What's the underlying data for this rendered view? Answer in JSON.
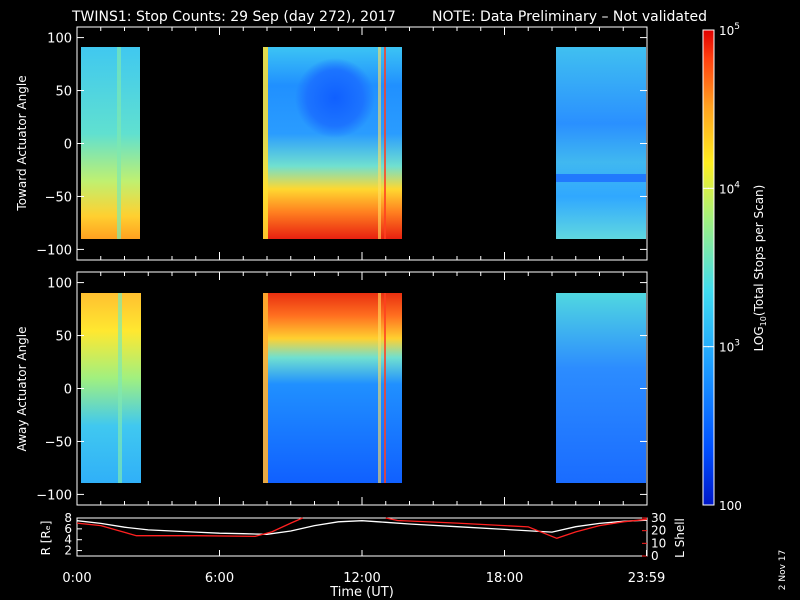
{
  "header": {
    "title": "TWINS1: Stop Counts: 29 Sep (day 272), 2017",
    "note": "NOTE: Data Preliminary – Not validated",
    "note_color": "#ff2020"
  },
  "footer": {
    "date_stamp": "2 Nov 17"
  },
  "chart_data": [
    {
      "type": "heatmap",
      "ylabel": "Toward Actuator Angle",
      "ylim": [
        -110,
        110
      ],
      "yticks": [
        "100",
        "50",
        "0",
        "−50",
        "−100"
      ],
      "ytick_values": [
        100,
        50,
        0,
        -50,
        -100
      ],
      "x_range_hours": [
        0,
        24
      ],
      "data_intervals_hours": [
        [
          0.15,
          2.5
        ],
        [
          8.1,
          13.6
        ],
        [
          20.2,
          24.0
        ]
      ],
      "angle_range": [
        -90,
        90
      ],
      "colorscale": "log",
      "notes": "Low counts (~300) at +60..0 deg during 9.5-12.5 UT; high counts (~3e4-1e5) near -70..-90 deg."
    },
    {
      "type": "heatmap",
      "ylabel": "Away Actuator Angle",
      "ylim": [
        -110,
        110
      ],
      "yticks": [
        "100",
        "50",
        "0",
        "−50",
        "−100"
      ],
      "ytick_values": [
        100,
        50,
        0,
        -50,
        -100
      ],
      "x_range_hours": [
        0,
        24
      ],
      "data_intervals_hours": [
        [
          0.15,
          2.6
        ],
        [
          8.1,
          13.6
        ],
        [
          20.2,
          24.0
        ]
      ],
      "angle_range": [
        -90,
        90
      ],
      "colorscale": "log",
      "notes": "High counts (~3e4-1e5) near +70..+90 deg; low counts (~200) at +30..-90 deg during 9.5-13 UT."
    },
    {
      "type": "line",
      "ylabel_left": "R [Rₑ]",
      "ylabel_right": "L Shell",
      "yticks_left": [
        "8",
        "6",
        "4",
        "2"
      ],
      "ytick_values_left": [
        8,
        6,
        4,
        2
      ],
      "ylim_left": [
        1,
        8
      ],
      "yticks_right": [
        "30",
        "20",
        "10",
        "0"
      ],
      "ytick_values_right": [
        30,
        20,
        10,
        0
      ],
      "ylim_right": [
        0,
        30
      ],
      "xlabel": "Time (UT)",
      "xticks": [
        "0:00",
        "6:00",
        "12:00",
        "18:00",
        "23:59"
      ],
      "xtick_values": [
        0,
        6,
        12,
        18,
        23.98
      ],
      "series": [
        {
          "color": "#ffffff",
          "axis": "left",
          "x": [
            0,
            1,
            2,
            3,
            4,
            5,
            6,
            7,
            8,
            9,
            10,
            11,
            12,
            13,
            14,
            16,
            18,
            20,
            21,
            22,
            23,
            24
          ],
          "y": [
            7.5,
            7.0,
            6.3,
            5.8,
            5.6,
            5.4,
            5.2,
            5.1,
            5.0,
            5.6,
            6.6,
            7.3,
            7.5,
            7.2,
            6.9,
            6.4,
            5.9,
            5.4,
            6.4,
            7.0,
            7.4,
            7.6
          ]
        },
        {
          "color": "#ff2020",
          "axis": "right",
          "x": [
            0,
            1,
            2.5,
            5,
            7.5,
            8.2,
            9,
            9.5
          ],
          "y": [
            26,
            24,
            16,
            16,
            15.5,
            19,
            26,
            31
          ]
        },
        {
          "color": "#ff2020",
          "axis": "right",
          "x": [
            13.0,
            13.5,
            16,
            18,
            19,
            20.2,
            21,
            22,
            23,
            24
          ],
          "y": [
            31,
            28,
            26,
            24,
            23,
            14,
            19,
            24,
            27,
            29
          ]
        }
      ]
    }
  ],
  "colorbar": {
    "label": "LOG10(Total Stops per Scan)",
    "label_main": "LOG",
    "label_sub": "10",
    "label_rest": "(Total Stops per Scan)",
    "ticks": [
      {
        "base": "10",
        "exp": "5",
        "value": 100000
      },
      {
        "base": "10",
        "exp": "4",
        "value": 10000
      },
      {
        "base": "10",
        "exp": "3",
        "value": 1000
      },
      {
        "base": "100",
        "exp": "",
        "value": 100
      }
    ],
    "range": [
      100,
      100000
    ],
    "colors": [
      "#0018c8",
      "#0050ff",
      "#1ea0ff",
      "#40dcf0",
      "#a0f080",
      "#ffee20",
      "#ffa020",
      "#ff4010",
      "#e00000"
    ]
  }
}
